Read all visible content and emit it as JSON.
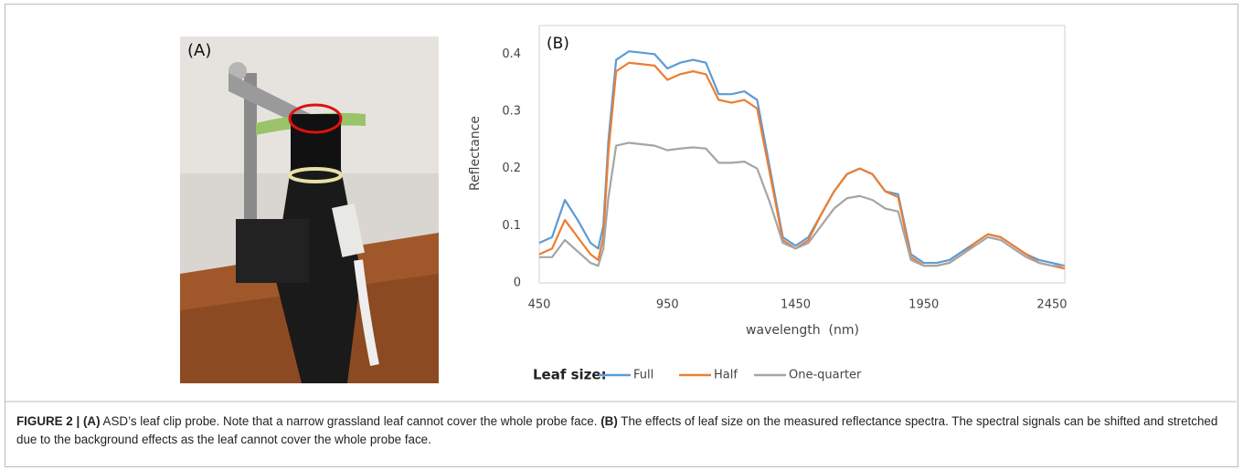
{
  "panel_a": {
    "label": "(A)"
  },
  "chart_data": {
    "type": "line",
    "panel_label": "(B)",
    "y_label": "Reflectance",
    "x_label": "wavelength  (nm)",
    "legend_title": "Leaf size:",
    "x": [
      450,
      500,
      550,
      600,
      650,
      680,
      700,
      720,
      750,
      800,
      900,
      950,
      1000,
      1050,
      1100,
      1150,
      1200,
      1250,
      1300,
      1350,
      1400,
      1450,
      1500,
      1550,
      1600,
      1650,
      1700,
      1750,
      1800,
      1850,
      1900,
      1950,
      2000,
      2050,
      2100,
      2150,
      2200,
      2250,
      2300,
      2350,
      2400,
      2450,
      2500
    ],
    "series": [
      {
        "name": "Full",
        "color": "#5b9bd5",
        "values": [
          0.07,
          0.08,
          0.145,
          0.11,
          0.07,
          0.06,
          0.1,
          0.25,
          0.39,
          0.405,
          0.4,
          0.375,
          0.385,
          0.39,
          0.385,
          0.33,
          0.33,
          0.335,
          0.32,
          0.2,
          0.08,
          0.065,
          0.08,
          0.12,
          0.16,
          0.19,
          0.2,
          0.19,
          0.16,
          0.155,
          0.05,
          0.035,
          0.035,
          0.04,
          0.055,
          0.07,
          0.085,
          0.08,
          0.065,
          0.05,
          0.04,
          0.035,
          0.03
        ]
      },
      {
        "name": "Half",
        "color": "#ed7d31",
        "values": [
          0.05,
          0.06,
          0.11,
          0.08,
          0.05,
          0.04,
          0.08,
          0.23,
          0.37,
          0.385,
          0.38,
          0.355,
          0.365,
          0.37,
          0.365,
          0.32,
          0.315,
          0.32,
          0.305,
          0.19,
          0.075,
          0.06,
          0.075,
          0.12,
          0.16,
          0.19,
          0.2,
          0.19,
          0.16,
          0.15,
          0.045,
          0.03,
          0.03,
          0.035,
          0.05,
          0.07,
          0.085,
          0.08,
          0.065,
          0.05,
          0.035,
          0.03,
          0.025
        ]
      },
      {
        "name": "One-quarter",
        "color": "#a5a5a5",
        "values": [
          0.045,
          0.045,
          0.075,
          0.055,
          0.035,
          0.03,
          0.06,
          0.15,
          0.24,
          0.245,
          0.24,
          0.232,
          0.235,
          0.237,
          0.235,
          0.21,
          0.21,
          0.212,
          0.2,
          0.14,
          0.07,
          0.06,
          0.07,
          0.1,
          0.13,
          0.148,
          0.152,
          0.145,
          0.13,
          0.125,
          0.04,
          0.03,
          0.03,
          0.035,
          0.05,
          0.065,
          0.08,
          0.075,
          0.06,
          0.045,
          0.035,
          0.03,
          0.03
        ]
      }
    ],
    "xlim": [
      450,
      2500
    ],
    "xticks": [
      450,
      950,
      1450,
      1950,
      2450
    ],
    "ylim": [
      0,
      0.45
    ],
    "yticks": [
      0,
      0.1,
      0.2,
      0.3,
      0.4
    ],
    "grid": false
  },
  "caption": {
    "figure": "FIGURE 2 |",
    "a_label": "(A)",
    "a_text": "ASD’s leaf clip probe. Note that a narrow grassland leaf cannot cover the whole probe face.",
    "b_label": "(B)",
    "b_text": "The effects of leaf size on the measured reflectance spectra. The spectral signals can be shifted and stretched due to the background effects as the leaf cannot cover the whole probe face."
  }
}
